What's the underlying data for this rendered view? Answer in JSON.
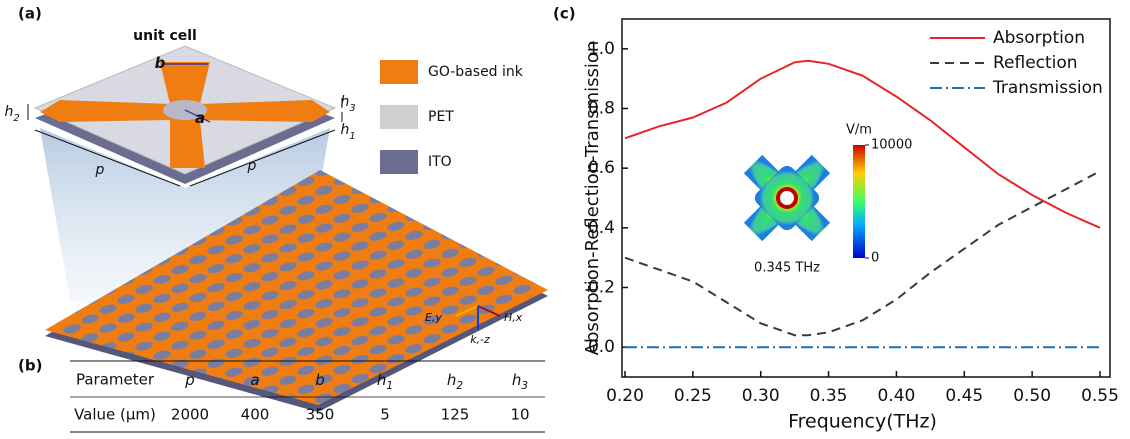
{
  "panels": {
    "a": "(a)",
    "b": "(b)",
    "c": "(c)"
  },
  "diagram": {
    "title": "unit cell",
    "dimension_labels": [
      {
        "text": "b"
      },
      {
        "text": "a"
      },
      {
        "text": "h",
        "sub": "2"
      },
      {
        "text": "h",
        "sub": "3"
      },
      {
        "text": "h",
        "sub": "1"
      },
      {
        "text": "p"
      },
      {
        "text": "p"
      }
    ],
    "materials": [
      "GO-based ink",
      "PET",
      "ITO"
    ],
    "axes": [
      "E,y",
      "H,x",
      "k,-z"
    ]
  },
  "table": {
    "rows": [
      [
        "Parameter",
        {
          "text": "p"
        },
        {
          "text": "a"
        },
        {
          "text": "b"
        },
        {
          "text": "h",
          "sub": "1"
        },
        {
          "text": "h",
          "sub": "2"
        },
        {
          "text": "h",
          "sub": "3"
        }
      ],
      [
        "Value (μm)",
        "2000",
        "400",
        "350",
        "5",
        "125",
        "10"
      ]
    ]
  },
  "chart_data": {
    "type": "line",
    "xlabel": "Frequency(THz)",
    "ylabel": "Absorption-Reflection-Transmission",
    "x": [
      0.2,
      0.225,
      0.25,
      0.275,
      0.3,
      0.325,
      0.335,
      0.35,
      0.375,
      0.4,
      0.425,
      0.45,
      0.475,
      0.5,
      0.525,
      0.55
    ],
    "series": [
      {
        "name": "Absorption",
        "color": "#e8242b",
        "dash": "solid",
        "values": [
          0.7,
          0.74,
          0.77,
          0.82,
          0.9,
          0.955,
          0.96,
          0.95,
          0.91,
          0.84,
          0.76,
          0.67,
          0.58,
          0.51,
          0.45,
          0.4
        ]
      },
      {
        "name": "Reflection",
        "color": "#3a3a3a",
        "dash": "dash",
        "values": [
          0.3,
          0.26,
          0.22,
          0.15,
          0.08,
          0.04,
          0.04,
          0.05,
          0.09,
          0.16,
          0.25,
          0.33,
          0.41,
          0.47,
          0.53,
          0.59
        ]
      },
      {
        "name": "Transmission",
        "color": "#1f6fb8",
        "dash": "dashdot",
        "values": [
          0,
          0,
          0,
          0,
          0,
          0,
          0,
          0,
          0,
          0,
          0,
          0,
          0,
          0,
          0,
          0
        ]
      }
    ],
    "xlim": [
      0.2,
      0.55
    ],
    "ylim": [
      -0.1,
      1.1
    ],
    "xticks": [
      {
        "value": 0.2,
        "label": "0.20"
      },
      0.25,
      {
        "value": 0.3,
        "label": "0.30"
      },
      0.35,
      {
        "value": 0.4,
        "label": "0.40"
      },
      0.45,
      {
        "value": 0.5,
        "label": "0.50"
      },
      0.55
    ],
    "yticks": [
      {
        "value": 0,
        "label": "0.0"
      },
      0.2,
      0.4,
      0.6,
      0.8,
      {
        "value": 1,
        "label": "1.0"
      }
    ],
    "grid": false,
    "legend": "upper-right",
    "inset": {
      "colorbar_title": "V/m",
      "colorbar_lim": [
        0,
        10000
      ],
      "colorbar_ticks": [
        0,
        10000
      ],
      "caption": "0.345 THz"
    }
  }
}
